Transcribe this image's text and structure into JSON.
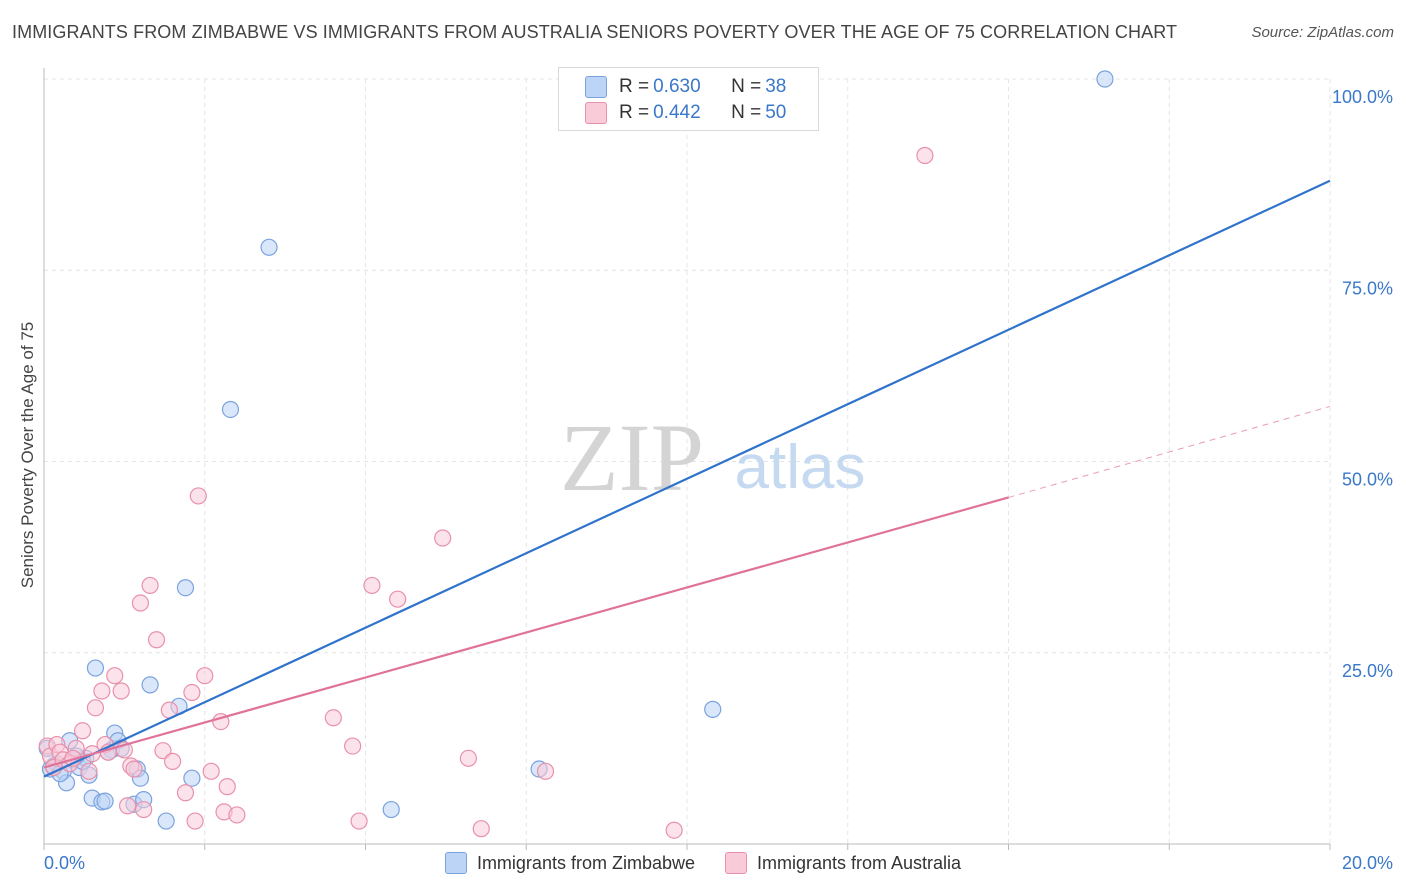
{
  "title": "IMMIGRANTS FROM ZIMBABWE VS IMMIGRANTS FROM AUSTRALIA SENIORS POVERTY OVER THE AGE OF 75 CORRELATION CHART",
  "source": "Source: ZipAtlas.com",
  "watermark": {
    "zip": "ZIP",
    "atlas": "atlas"
  },
  "legend_top": {
    "r_label": "R = ",
    "n_label": "N = ",
    "series": [
      {
        "r": "0.630",
        "n": "38"
      },
      {
        "r": "0.442",
        "n": "50"
      }
    ]
  },
  "legend_bottom": [
    {
      "label": "Immigrants from Zimbabwe"
    },
    {
      "label": "Immigrants from Australia"
    }
  ],
  "colors": {
    "blue_fill": "#bcd4f5",
    "blue_stroke": "#7aa3de",
    "blue_line": "#2f73cc",
    "pink_fill": "#f9cad8",
    "pink_stroke": "#e891ab",
    "pink_line": "#e07399",
    "tick_text": "#3a78c9",
    "grid": "#e4e4e4"
  },
  "chart_data": {
    "type": "scatter",
    "title": "IMMIGRANTS FROM ZIMBABWE VS IMMIGRANTS FROM AUSTRALIA SENIORS POVERTY OVER THE AGE OF 75 CORRELATION CHART",
    "xlabel": "",
    "ylabel": "Seniors Poverty Over the Age of 75",
    "xlim": [
      0,
      20
    ],
    "ylim": [
      0,
      100
    ],
    "x_ticks": [
      {
        "value": 0,
        "label": "0.0%"
      },
      {
        "value": 20,
        "label": "20.0%"
      }
    ],
    "y_ticks": [
      {
        "value": 25,
        "label": "25.0%"
      },
      {
        "value": 50,
        "label": "50.0%"
      },
      {
        "value": 75,
        "label": "75.0%"
      },
      {
        "value": 100,
        "label": "100.0%"
      }
    ],
    "series": [
      {
        "name": "Immigrants from Zimbabwe",
        "color": "blue",
        "points": [
          [
            0.05,
            12.5
          ],
          [
            0.1,
            9.8
          ],
          [
            0.2,
            10.5
          ],
          [
            0.3,
            9.5
          ],
          [
            0.35,
            8.0
          ],
          [
            0.4,
            13.5
          ],
          [
            0.45,
            11.0
          ],
          [
            0.55,
            10.0
          ],
          [
            0.65,
            11.2
          ],
          [
            0.7,
            9.0
          ],
          [
            0.75,
            6.0
          ],
          [
            0.8,
            23.0
          ],
          [
            0.9,
            5.5
          ],
          [
            0.95,
            5.6
          ],
          [
            1.05,
            12.3
          ],
          [
            1.1,
            14.5
          ],
          [
            1.15,
            13.5
          ],
          [
            1.2,
            12.5
          ],
          [
            1.4,
            5.2
          ],
          [
            1.45,
            9.8
          ],
          [
            1.5,
            8.6
          ],
          [
            1.55,
            5.8
          ],
          [
            1.65,
            20.8
          ],
          [
            1.9,
            3.0
          ],
          [
            2.1,
            18.0
          ],
          [
            2.2,
            33.5
          ],
          [
            2.3,
            8.6
          ],
          [
            2.9,
            56.8
          ],
          [
            3.5,
            78.0
          ],
          [
            5.4,
            4.5
          ],
          [
            7.7,
            9.8
          ],
          [
            10.4,
            17.6
          ],
          [
            16.5,
            100.0
          ],
          [
            0.15,
            10.2
          ],
          [
            0.6,
            10.8
          ],
          [
            0.5,
            11.5
          ],
          [
            1.0,
            12.0
          ],
          [
            0.25,
            9.2
          ]
        ]
      },
      {
        "name": "Immigrants from Australia",
        "color": "pink",
        "points": [
          [
            0.05,
            12.8
          ],
          [
            0.1,
            11.5
          ],
          [
            0.15,
            10.0
          ],
          [
            0.2,
            13.0
          ],
          [
            0.25,
            12.0
          ],
          [
            0.3,
            11.0
          ],
          [
            0.4,
            10.5
          ],
          [
            0.5,
            12.5
          ],
          [
            0.6,
            14.8
          ],
          [
            0.7,
            9.5
          ],
          [
            0.75,
            11.8
          ],
          [
            0.8,
            17.8
          ],
          [
            0.9,
            20.0
          ],
          [
            0.95,
            13.0
          ],
          [
            1.0,
            12.0
          ],
          [
            1.1,
            22.0
          ],
          [
            1.2,
            20.0
          ],
          [
            1.25,
            12.3
          ],
          [
            1.3,
            5.0
          ],
          [
            1.35,
            10.2
          ],
          [
            1.4,
            9.8
          ],
          [
            1.5,
            31.5
          ],
          [
            1.55,
            4.5
          ],
          [
            1.65,
            33.8
          ],
          [
            1.75,
            26.7
          ],
          [
            1.85,
            12.2
          ],
          [
            1.95,
            17.5
          ],
          [
            2.0,
            10.8
          ],
          [
            2.2,
            6.7
          ],
          [
            2.3,
            19.8
          ],
          [
            2.35,
            3.0
          ],
          [
            2.4,
            45.5
          ],
          [
            2.5,
            22.0
          ],
          [
            2.6,
            9.5
          ],
          [
            2.75,
            16.0
          ],
          [
            2.8,
            4.2
          ],
          [
            2.85,
            7.5
          ],
          [
            3.0,
            3.8
          ],
          [
            4.5,
            16.5
          ],
          [
            4.8,
            12.8
          ],
          [
            4.9,
            3.0
          ],
          [
            5.1,
            33.8
          ],
          [
            5.5,
            32.0
          ],
          [
            6.2,
            40.0
          ],
          [
            6.6,
            11.2
          ],
          [
            6.8,
            2.0
          ],
          [
            7.8,
            9.5
          ],
          [
            9.8,
            1.8
          ],
          [
            13.7,
            90.0
          ],
          [
            0.45,
            11.2
          ]
        ]
      }
    ],
    "trendlines": [
      {
        "series": "Immigrants from Zimbabwe",
        "x0": 0,
        "y0": 8.8,
        "x1": 20,
        "y1": 86.7,
        "style": "solid"
      },
      {
        "series": "Immigrants from Australia",
        "x0": 0,
        "y0": 10.0,
        "x1": 15.0,
        "y1": 45.3,
        "style": "solid"
      },
      {
        "series": "Immigrants from Australia",
        "x0": 15.0,
        "y0": 45.3,
        "x1": 20,
        "y1": 57.2,
        "style": "dashed"
      }
    ]
  }
}
